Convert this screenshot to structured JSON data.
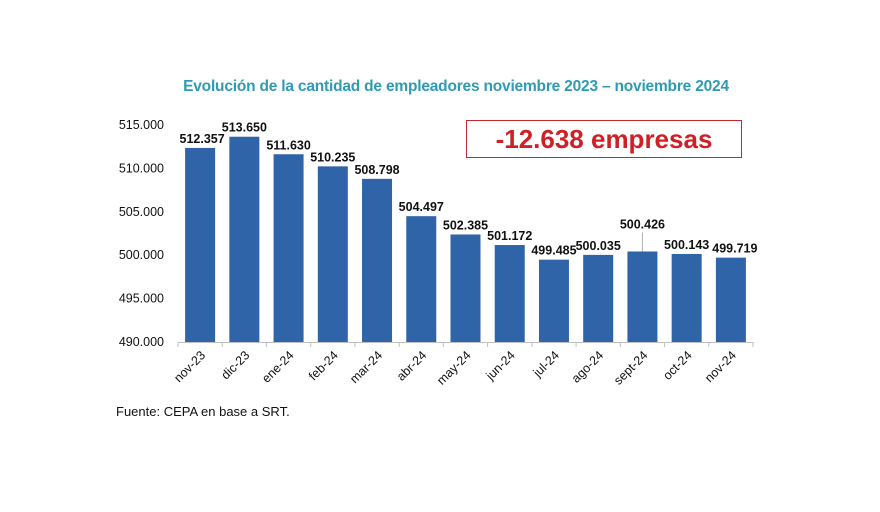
{
  "chart_data": {
    "type": "bar",
    "title": "Evolución de la cantidad de empleadores noviembre 2023 – noviembre 2024",
    "xlabel": "",
    "ylabel": "",
    "ylim": [
      490000,
      515000
    ],
    "yticks": [
      490000,
      495000,
      500000,
      505000,
      510000,
      515000
    ],
    "ytick_labels": [
      "490.000",
      "495.000",
      "500.000",
      "505.000",
      "510.000",
      "515.000"
    ],
    "categories": [
      "nov-23",
      "dic-23",
      "ene-24",
      "feb-24",
      "mar-24",
      "abr-24",
      "may-24",
      "jun-24",
      "jul-24",
      "ago-24",
      "sept-24",
      "oct-24",
      "nov-24"
    ],
    "values": [
      512357,
      513650,
      511630,
      510235,
      508798,
      504497,
      502385,
      501172,
      499485,
      500035,
      500426,
      500143,
      499719
    ],
    "data_labels": [
      "512.357",
      "513.650",
      "511.630",
      "510.235",
      "508.798",
      "504.497",
      "502.385",
      "501.172",
      "499.485",
      "500.035",
      "500.426",
      "500.143",
      "499.719"
    ],
    "grid": false,
    "bar_color": "#2f64a8",
    "annotation": "-12.638 empresas",
    "annotation_color": "#d11f26",
    "source": "Fuente: CEPA en base a SRT."
  }
}
